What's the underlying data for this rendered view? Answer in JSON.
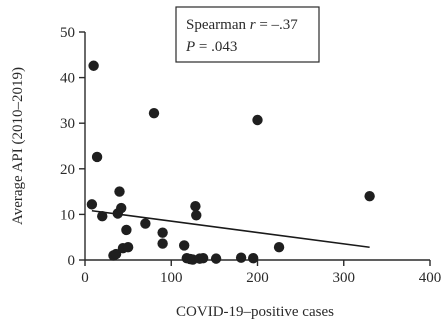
{
  "chart_data": {
    "type": "scatter",
    "xlabel": "COVID-19–positive cases",
    "ylabel": "Average API (2010–2019)",
    "xlim": [
      0,
      400
    ],
    "ylim": [
      0,
      50
    ],
    "xticks": [
      0,
      100,
      200,
      300,
      400
    ],
    "yticks": [
      0,
      10,
      20,
      30,
      40,
      50
    ],
    "grid": false,
    "point_color": "#1f1f1f",
    "annotation": {
      "placement": "top-center",
      "line1_prefix": "Spearman ",
      "line1_var": "r",
      "line1_suffix": " = –.37",
      "line2_var": "P",
      "line2_suffix": " = .043"
    },
    "points": [
      {
        "x": 8,
        "y": 12.2
      },
      {
        "x": 10,
        "y": 42.6
      },
      {
        "x": 14,
        "y": 22.6
      },
      {
        "x": 20,
        "y": 9.6
      },
      {
        "x": 33,
        "y": 1.0
      },
      {
        "x": 36,
        "y": 1.3
      },
      {
        "x": 38,
        "y": 10.2
      },
      {
        "x": 40,
        "y": 15.0
      },
      {
        "x": 42,
        "y": 11.4
      },
      {
        "x": 44,
        "y": 2.6
      },
      {
        "x": 48,
        "y": 6.6
      },
      {
        "x": 50,
        "y": 2.8
      },
      {
        "x": 70,
        "y": 8.0
      },
      {
        "x": 80,
        "y": 32.2
      },
      {
        "x": 90,
        "y": 6.0
      },
      {
        "x": 90,
        "y": 3.6
      },
      {
        "x": 115,
        "y": 3.2
      },
      {
        "x": 118,
        "y": 0.4
      },
      {
        "x": 122,
        "y": 0.2
      },
      {
        "x": 125,
        "y": 0.1
      },
      {
        "x": 128,
        "y": 11.8
      },
      {
        "x": 129,
        "y": 9.8
      },
      {
        "x": 133,
        "y": 0.3
      },
      {
        "x": 137,
        "y": 0.4
      },
      {
        "x": 152,
        "y": 0.3
      },
      {
        "x": 181,
        "y": 0.5
      },
      {
        "x": 195,
        "y": 0.4
      },
      {
        "x": 200,
        "y": 30.7
      },
      {
        "x": 225,
        "y": 2.8
      },
      {
        "x": 330,
        "y": 14.0
      }
    ],
    "fit_line": {
      "x": [
        8,
        330
      ],
      "y": [
        10.8,
        2.8
      ]
    }
  }
}
